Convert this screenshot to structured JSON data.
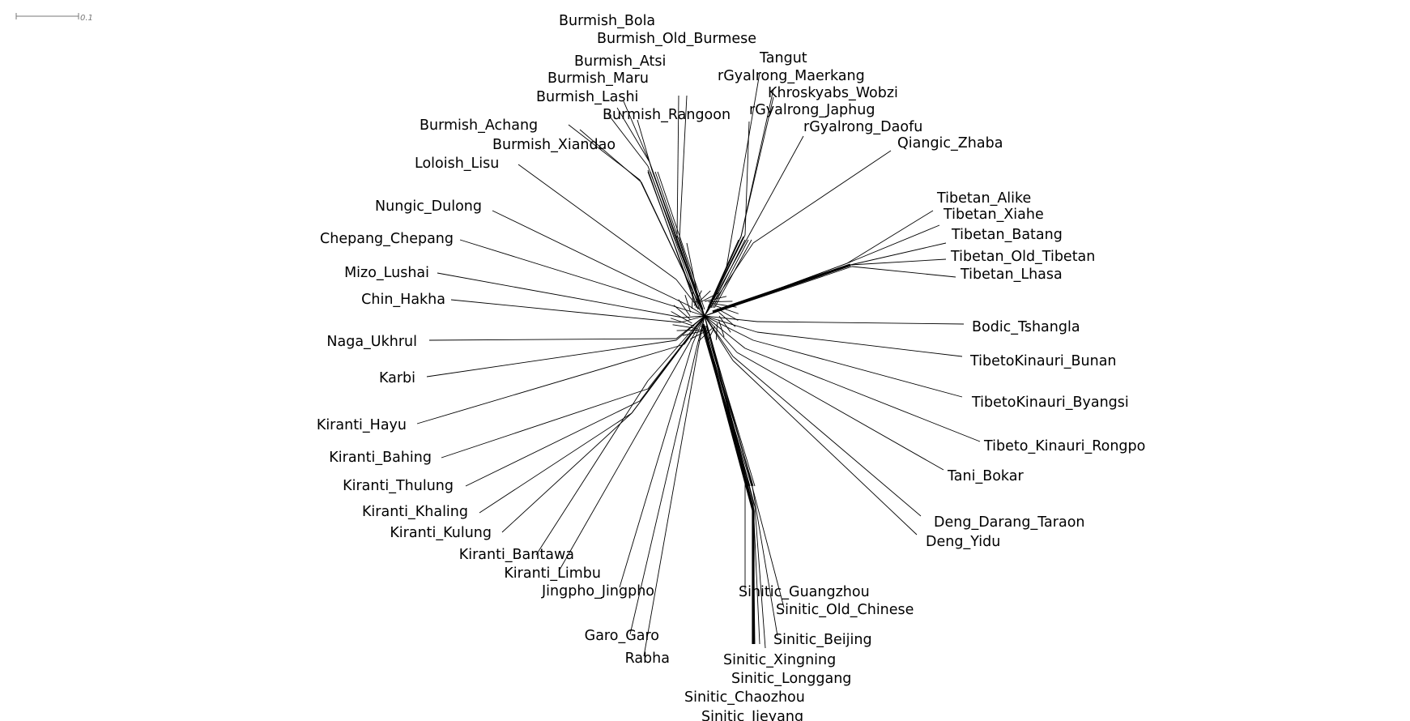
{
  "scale_bar": {
    "label": "0.1",
    "length": 0.1
  },
  "taxa": [
    "Burmish_Bola",
    "Burmish_Old_Burmese",
    "Burmish_Atsi",
    "Burmish_Maru",
    "Burmish_Lashi",
    "Burmish_Rangoon",
    "Burmish_Achang",
    "Burmish_Xiandao",
    "Loloish_Lisu",
    "Tangut",
    "rGyalrong_Maerkang",
    "Khroskyabs_Wobzi",
    "rGyalrong_Japhug",
    "rGyalrong_Daofu",
    "Qiangic_Zhaba",
    "Tibetan_Alike",
    "Tibetan_Xiahe",
    "Tibetan_Batang",
    "Tibetan_Old_Tibetan",
    "Tibetan_Lhasa",
    "Bodic_Tshangla",
    "TibetoKinauri_Bunan",
    "TibetoKinauri_Byangsi",
    "Tibeto_Kinauri_Rongpo",
    "Tani_Bokar",
    "Deng_Darang_Taraon",
    "Deng_Yidu",
    "Nungic_Dulong",
    "Chepang_Chepang",
    "Mizo_Lushai",
    "Chin_Hakha",
    "Naga_Ukhrul",
    "Karbi",
    "Kiranti_Hayu",
    "Kiranti_Bahing",
    "Kiranti_Thulung",
    "Kiranti_Khaling",
    "Kiranti_Kulung",
    "Kiranti_Bantawa",
    "Kiranti_Limbu",
    "Jingpho_Jingpho",
    "Garo_Garo",
    "Rabha",
    "Sinitic_Guangzhou",
    "Sinitic_Old_Chinese",
    "Sinitic_Beijing",
    "Sinitic_Xingning",
    "Sinitic_Longgang",
    "Sinitic_Chaozhou",
    "Sinitic_Jieyang"
  ]
}
